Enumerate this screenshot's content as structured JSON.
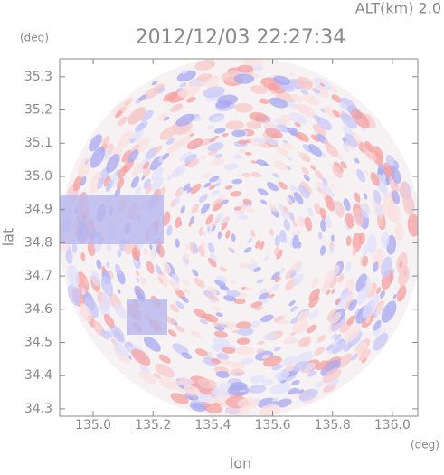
{
  "chart_data": {
    "type": "radar-field",
    "title": "2012/12/03 22:27:34",
    "subtitle": "ALT(km) 2.0",
    "x_label": "lon",
    "y_label": "lat",
    "x_unit": "(deg)",
    "y_unit": "(deg)",
    "xlim": [
      134.888,
      136.085
    ],
    "ylim": [
      34.278,
      35.354
    ],
    "xticks": [
      {
        "value": 135,
        "label": "135.0"
      },
      135.2,
      135.4,
      135.6,
      135.8,
      {
        "value": 136,
        "label": "136.0"
      }
    ],
    "yticks": [
      34.3,
      34.4,
      34.5,
      34.6,
      34.7,
      34.8,
      34.9,
      {
        "value": 35,
        "label": "35.0"
      },
      35.1,
      35.2,
      35.3
    ]
  }
}
